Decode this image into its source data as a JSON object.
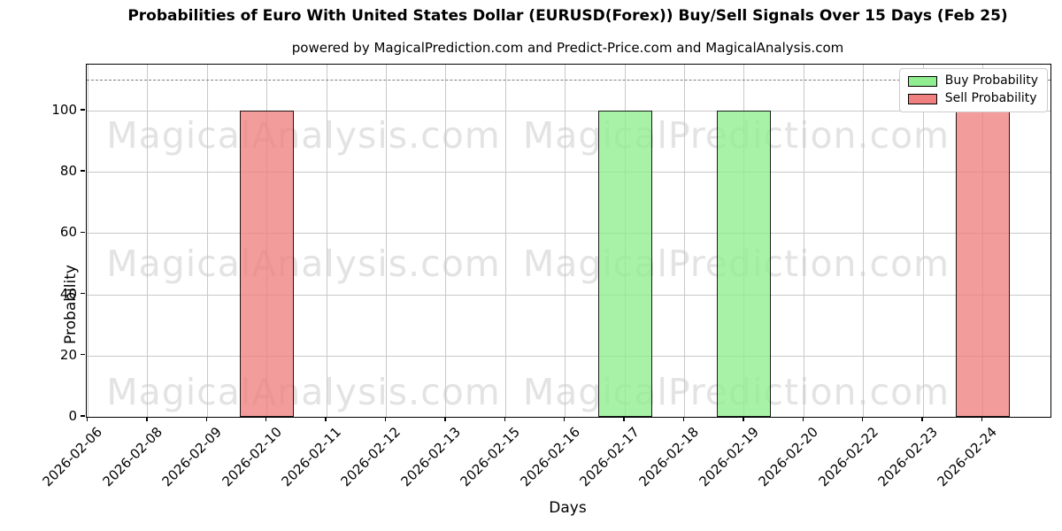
{
  "chart_data": {
    "type": "bar",
    "title": "Probabilities of Euro With United States Dollar (EURUSD(Forex)) Buy/Sell Signals Over 15 Days (Feb 25)",
    "subtitle": "powered by MagicalPrediction.com and Predict-Price.com and MagicalAnalysis.com",
    "xlabel": "Days",
    "ylabel": "Probability",
    "ylim": [
      0,
      115
    ],
    "yticks": [
      0,
      20,
      40,
      60,
      80,
      100
    ],
    "grid": true,
    "threshold_dashed_line_y": 110,
    "categories": [
      "2026-02-06",
      "2026-02-08",
      "2026-02-09",
      "2026-02-10",
      "2026-02-11",
      "2026-02-12",
      "2026-02-13",
      "2026-02-15",
      "2026-02-16",
      "2026-02-17",
      "2026-02-18",
      "2026-02-19",
      "2026-02-20",
      "2026-02-22",
      "2026-02-23",
      "2026-02-24"
    ],
    "series": [
      {
        "name": "Buy Probability",
        "color": "#90ee90",
        "values": [
          0,
          0,
          0,
          0,
          0,
          0,
          0,
          0,
          0,
          100,
          0,
          100,
          0,
          0,
          0,
          0
        ]
      },
      {
        "name": "Sell Probability",
        "color": "#f08080",
        "values": [
          0,
          0,
          0,
          100,
          0,
          0,
          0,
          0,
          0,
          0,
          0,
          0,
          0,
          0,
          0,
          100
        ]
      }
    ],
    "legend": {
      "position": "upper right",
      "entries": [
        "Buy Probability",
        "Sell Probability"
      ]
    },
    "watermarks": [
      "MagicalAnalysis.com",
      "MagicalPrediction.com"
    ]
  },
  "colors": {
    "buy": "#90ee90",
    "sell": "#f08080",
    "bar_edge": "#000000",
    "grid": "#c8c8c8",
    "dashed_line": "#7f7f7f",
    "watermark": "#e3e3e3",
    "background": "#ffffff"
  }
}
